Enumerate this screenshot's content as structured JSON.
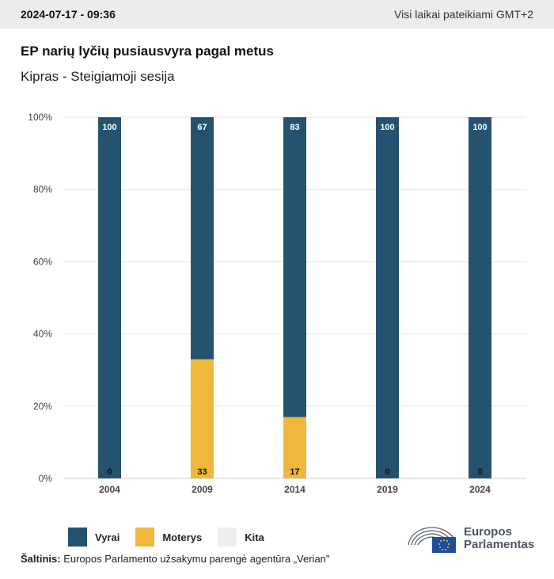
{
  "header": {
    "timestamp": "2024-07-17 - 09:36",
    "timezone_note": "Visi laikai pateikiami GMT+2"
  },
  "title": "EP narių lyčių pusiausvyra pagal metus",
  "subtitle": "Kipras - Steigiamoji sesija",
  "chart_data": {
    "type": "bar",
    "stacked": true,
    "categories": [
      "2004",
      "2009",
      "2014",
      "2019",
      "2024"
    ],
    "series": [
      {
        "name": "Moterys",
        "values": [
          0,
          33,
          17,
          0,
          0
        ],
        "color": "#f0b83a"
      },
      {
        "name": "Vyrai",
        "values": [
          100,
          67,
          83,
          100,
          100
        ],
        "color": "#25536f"
      },
      {
        "name": "Kita",
        "values": [
          0,
          0,
          0,
          0,
          0
        ],
        "color": "#eeeeee"
      }
    ],
    "ylim": [
      0,
      100
    ],
    "yticks": [
      "0%",
      "20%",
      "40%",
      "60%",
      "80%",
      "100%"
    ],
    "ytick_values": [
      0,
      20,
      40,
      60,
      80,
      100
    ],
    "grid": true,
    "legend_position": "bottom-left"
  },
  "legend": {
    "items": [
      {
        "label": "Vyrai",
        "color": "#25536f"
      },
      {
        "label": "Moterys",
        "color": "#f0b83a"
      },
      {
        "label": "Kita",
        "color": "#eeeeee"
      }
    ]
  },
  "source": {
    "label": "Šaltinis:",
    "text": "Europos Parlamento užsakymu parengė agentūra „Verian\""
  },
  "logo": {
    "line1": "Europos",
    "line2": "Parlamentas",
    "icon": "european-parliament-logo-icon"
  }
}
